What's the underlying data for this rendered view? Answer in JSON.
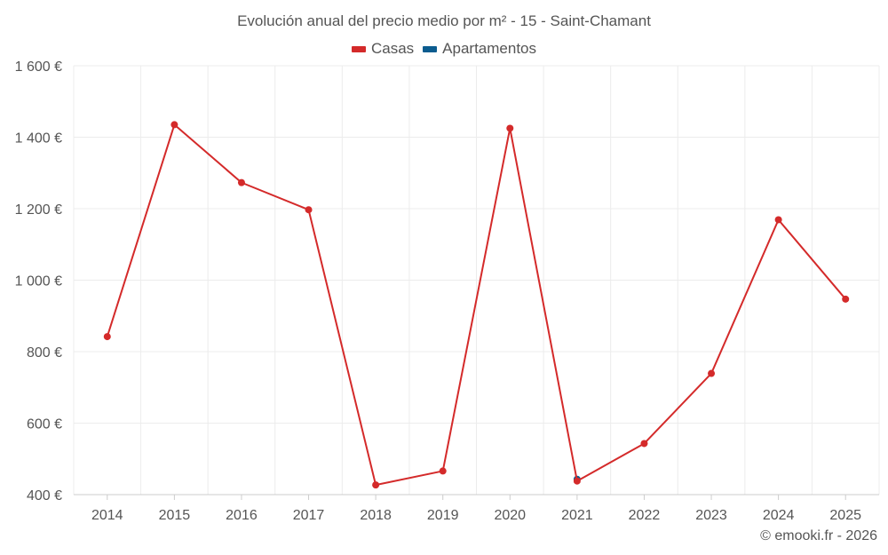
{
  "chart_data": {
    "type": "line",
    "title": "Evolución anual del precio medio por m² - 15 - Saint-Chamant",
    "categories": [
      "2014",
      "2015",
      "2016",
      "2017",
      "2018",
      "2019",
      "2020",
      "2021",
      "2022",
      "2023",
      "2024",
      "2025"
    ],
    "series": [
      {
        "name": "Casas",
        "color": "#d42a2a",
        "values": [
          842,
          1435,
          1273,
          1197,
          427,
          466,
          1425,
          438,
          543,
          739,
          1169,
          947
        ]
      },
      {
        "name": "Apartamentos",
        "color": "#0b5c8f",
        "values": [
          null,
          null,
          null,
          null,
          null,
          null,
          null,
          443,
          null,
          null,
          null,
          null
        ]
      }
    ],
    "ylim": [
      400,
      1600
    ],
    "yticks": [
      400,
      600,
      800,
      1000,
      1200,
      1400,
      1600
    ],
    "ytick_labels": [
      "400 €",
      "600 €",
      "800 €",
      "1 000 €",
      "1 200 €",
      "1 400 €",
      "1 600 €"
    ],
    "xlabel": "",
    "ylabel": "",
    "grid": true,
    "legend_position": "top-center"
  },
  "legend": {
    "casas_label": "Casas",
    "apartamentos_label": "Apartamentos"
  },
  "credit": "© emooki.fr - 2026"
}
